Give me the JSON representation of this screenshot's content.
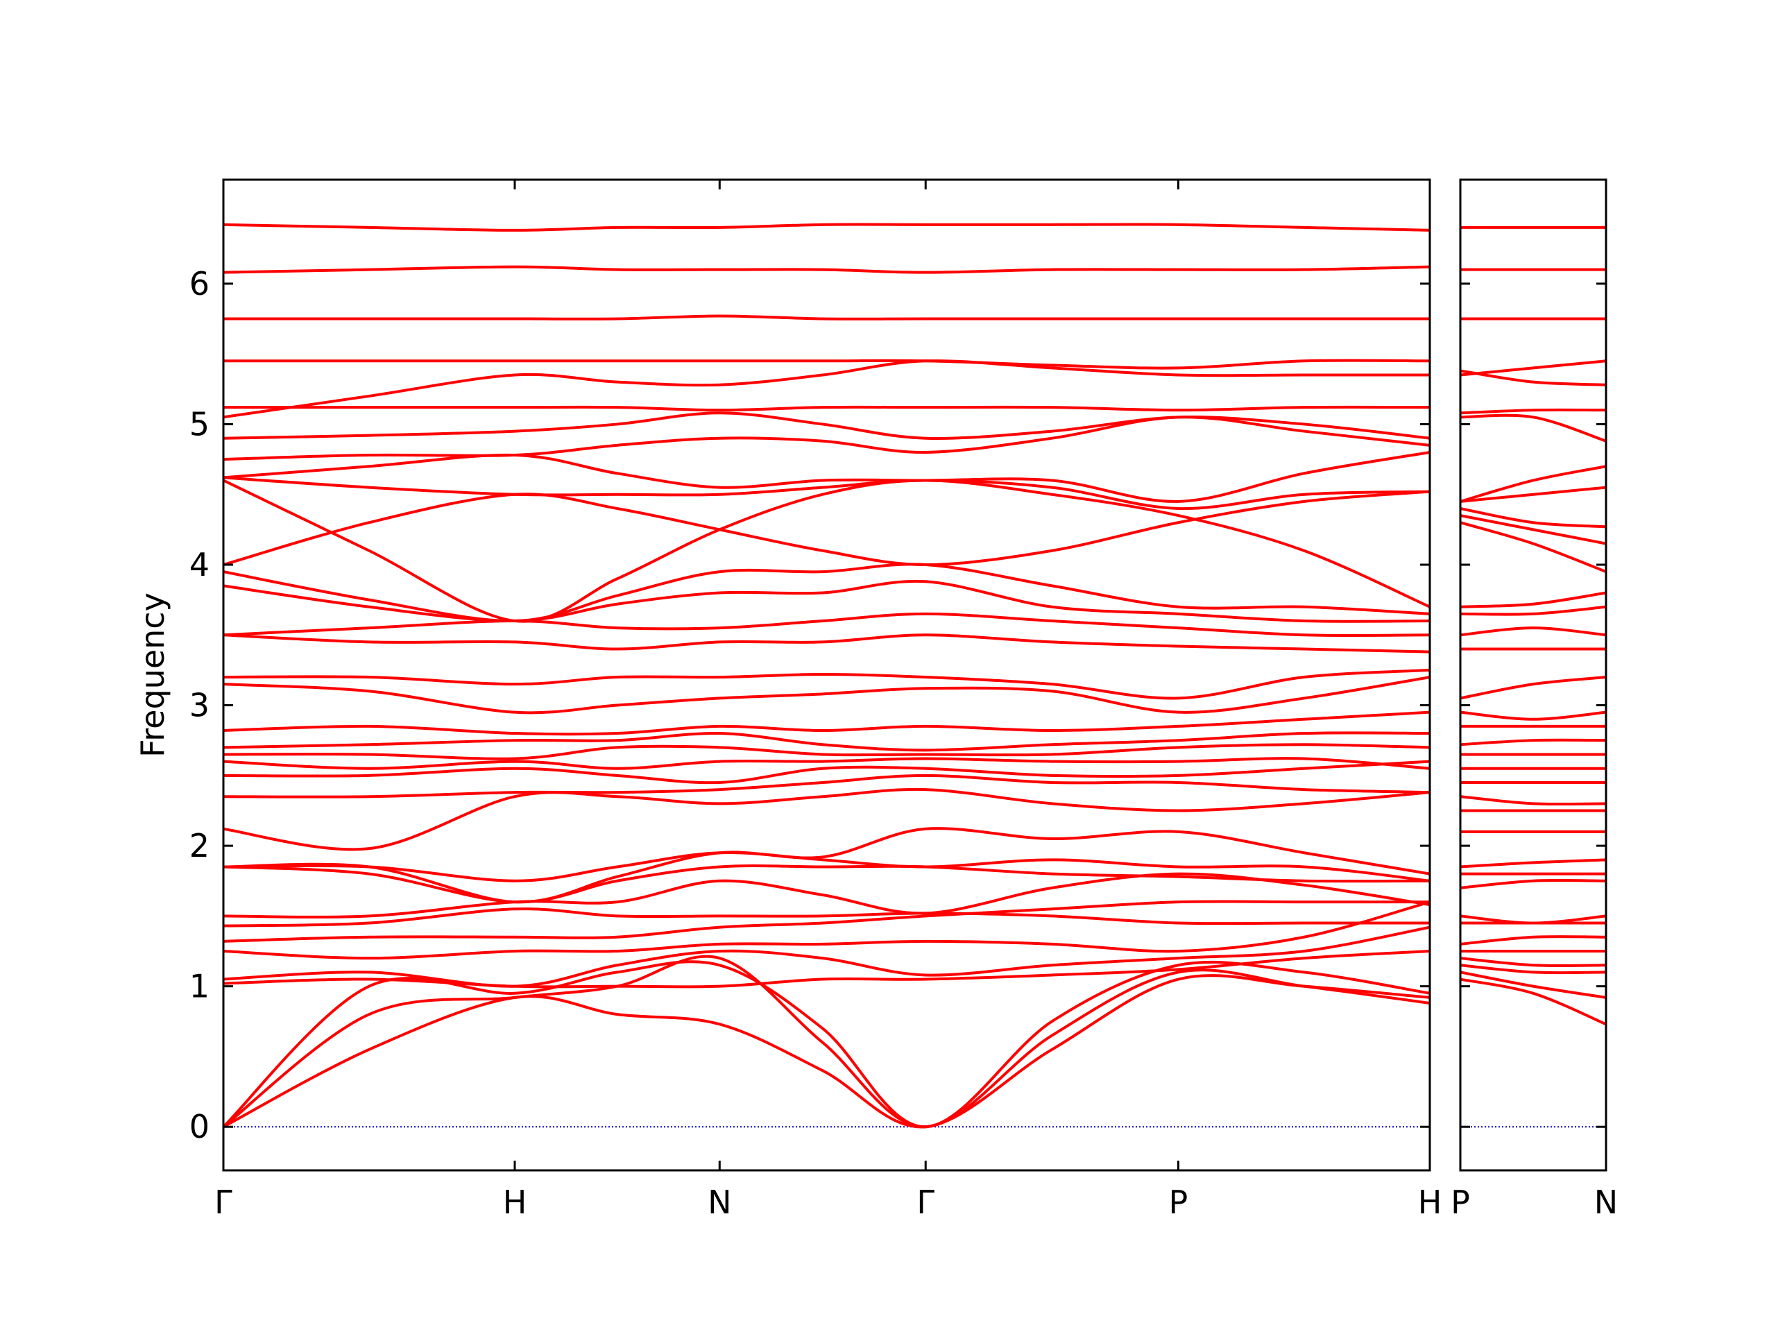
{
  "chart_data": [
    {
      "type": "line",
      "ylabel": "Frequency",
      "color": "#ff0000",
      "grid": false,
      "hline": 0,
      "hline_color": "#0000cc",
      "x": [
        0,
        1.28,
        2.56,
        3.46,
        4.36,
        5.265,
        6.17,
        7.28,
        8.39,
        9.495,
        10.6
      ],
      "xlim": [
        0,
        10.6
      ],
      "xticks": [
        {
          "value": 0,
          "label": "Γ"
        },
        {
          "value": 2.56,
          "label": "H"
        },
        {
          "value": 4.36,
          "label": "N"
        },
        {
          "value": 6.17,
          "label": "Γ"
        },
        {
          "value": 8.39,
          "label": "P"
        },
        {
          "value": 10.6,
          "label": "H"
        }
      ],
      "ylim": [
        -0.31,
        6.74
      ],
      "yticks": [
        0,
        1,
        2,
        3,
        4,
        5,
        6
      ],
      "series": [
        {
          "values": [
            0,
            0.55,
            0.92,
            0.8,
            0.73,
            0.4,
            0,
            0.55,
            1.05,
            1.0,
            0.92
          ]
        },
        {
          "values": [
            0,
            0.8,
            0.92,
            1.0,
            1.2,
            0.6,
            0,
            0.65,
            1.1,
            1.0,
            0.88
          ]
        },
        {
          "values": [
            0,
            1.0,
            0.95,
            1.1,
            1.15,
            0.7,
            0,
            0.75,
            1.15,
            1.1,
            0.95
          ]
        },
        {
          "values": [
            1.02,
            1.05,
            1.0,
            1.0,
            1.0,
            1.05,
            1.05,
            1.08,
            1.12,
            1.2,
            1.25
          ]
        },
        {
          "values": [
            1.05,
            1.1,
            1.0,
            1.15,
            1.25,
            1.2,
            1.08,
            1.15,
            1.2,
            1.25,
            1.42
          ]
        },
        {
          "values": [
            1.25,
            1.2,
            1.25,
            1.25,
            1.3,
            1.3,
            1.32,
            1.3,
            1.25,
            1.35,
            1.6
          ]
        },
        {
          "values": [
            1.32,
            1.35,
            1.35,
            1.35,
            1.42,
            1.45,
            1.5,
            1.55,
            1.6,
            1.6,
            1.6
          ]
        },
        {
          "values": [
            1.43,
            1.45,
            1.55,
            1.5,
            1.5,
            1.5,
            1.52,
            1.5,
            1.45,
            1.45,
            1.45
          ]
        },
        {
          "values": [
            1.5,
            1.5,
            1.6,
            1.6,
            1.75,
            1.65,
            1.52,
            1.7,
            1.8,
            1.72,
            1.58
          ]
        },
        {
          "values": [
            1.85,
            1.8,
            1.6,
            1.75,
            1.85,
            1.85,
            1.85,
            1.8,
            1.78,
            1.75,
            1.75
          ]
        },
        {
          "values": [
            1.85,
            1.85,
            1.75,
            1.85,
            1.95,
            1.9,
            1.85,
            1.9,
            1.85,
            1.85,
            1.75
          ]
        },
        {
          "values": [
            1.85,
            1.85,
            1.6,
            1.78,
            1.95,
            1.92,
            2.12,
            2.05,
            2.1,
            1.95,
            1.8
          ]
        },
        {
          "values": [
            2.12,
            1.98,
            2.35,
            2.35,
            2.3,
            2.35,
            2.4,
            2.3,
            2.25,
            2.3,
            2.38
          ]
        },
        {
          "values": [
            2.35,
            2.35,
            2.38,
            2.38,
            2.4,
            2.45,
            2.5,
            2.45,
            2.45,
            2.4,
            2.38
          ]
        },
        {
          "values": [
            2.5,
            2.5,
            2.55,
            2.5,
            2.45,
            2.55,
            2.55,
            2.5,
            2.5,
            2.55,
            2.6
          ]
        },
        {
          "values": [
            2.6,
            2.55,
            2.6,
            2.55,
            2.6,
            2.6,
            2.62,
            2.6,
            2.6,
            2.62,
            2.55
          ]
        },
        {
          "values": [
            2.65,
            2.65,
            2.62,
            2.7,
            2.7,
            2.65,
            2.65,
            2.65,
            2.7,
            2.72,
            2.7
          ]
        },
        {
          "values": [
            2.7,
            2.72,
            2.75,
            2.75,
            2.8,
            2.72,
            2.68,
            2.72,
            2.75,
            2.8,
            2.8
          ]
        },
        {
          "values": [
            2.82,
            2.85,
            2.8,
            2.8,
            2.85,
            2.82,
            2.85,
            2.82,
            2.85,
            2.9,
            2.95
          ]
        },
        {
          "values": [
            3.15,
            3.1,
            2.95,
            3.0,
            3.05,
            3.08,
            3.12,
            3.1,
            2.95,
            3.05,
            3.2
          ]
        },
        {
          "values": [
            3.2,
            3.2,
            3.15,
            3.2,
            3.2,
            3.22,
            3.2,
            3.15,
            3.05,
            3.2,
            3.25
          ]
        },
        {
          "values": [
            3.5,
            3.45,
            3.45,
            3.4,
            3.45,
            3.45,
            3.5,
            3.45,
            3.42,
            3.4,
            3.38
          ]
        },
        {
          "values": [
            3.5,
            3.55,
            3.6,
            3.55,
            3.55,
            3.6,
            3.65,
            3.6,
            3.55,
            3.5,
            3.5
          ]
        },
        {
          "values": [
            3.85,
            3.7,
            3.6,
            3.72,
            3.8,
            3.8,
            3.88,
            3.7,
            3.65,
            3.6,
            3.6
          ]
        },
        {
          "values": [
            3.95,
            3.75,
            3.6,
            3.78,
            3.95,
            3.95,
            4.0,
            3.85,
            3.7,
            3.7,
            3.65
          ]
        },
        {
          "values": [
            4.0,
            4.3,
            4.5,
            4.4,
            4.25,
            4.1,
            4.0,
            4.1,
            4.3,
            4.45,
            4.52
          ]
        },
        {
          "values": [
            4.6,
            4.1,
            3.6,
            3.9,
            4.25,
            4.5,
            4.6,
            4.5,
            4.35,
            4.1,
            3.7
          ]
        },
        {
          "values": [
            4.62,
            4.55,
            4.5,
            4.5,
            4.5,
            4.55,
            4.6,
            4.55,
            4.4,
            4.5,
            4.52
          ]
        },
        {
          "values": [
            4.62,
            4.7,
            4.78,
            4.65,
            4.55,
            4.6,
            4.6,
            4.6,
            4.45,
            4.65,
            4.8
          ]
        },
        {
          "values": [
            4.75,
            4.78,
            4.78,
            4.85,
            4.9,
            4.88,
            4.8,
            4.9,
            5.05,
            4.95,
            4.85
          ]
        },
        {
          "values": [
            4.9,
            4.92,
            4.95,
            5.0,
            5.08,
            5.0,
            4.9,
            4.95,
            5.05,
            5.0,
            4.9
          ]
        },
        {
          "values": [
            5.05,
            5.2,
            5.35,
            5.3,
            5.28,
            5.35,
            5.45,
            5.4,
            5.35,
            5.35,
            5.35
          ]
        },
        {
          "values": [
            5.12,
            5.12,
            5.12,
            5.12,
            5.1,
            5.12,
            5.12,
            5.12,
            5.1,
            5.12,
            5.12
          ]
        },
        {
          "values": [
            5.45,
            5.45,
            5.45,
            5.45,
            5.45,
            5.45,
            5.45,
            5.42,
            5.4,
            5.45,
            5.45
          ]
        },
        {
          "values": [
            5.75,
            5.75,
            5.75,
            5.75,
            5.77,
            5.75,
            5.75,
            5.75,
            5.75,
            5.75,
            5.75
          ]
        },
        {
          "values": [
            6.08,
            6.1,
            6.12,
            6.1,
            6.1,
            6.1,
            6.08,
            6.1,
            6.1,
            6.1,
            6.12
          ]
        },
        {
          "values": [
            6.42,
            6.4,
            6.38,
            6.4,
            6.4,
            6.42,
            6.42,
            6.42,
            6.42,
            6.4,
            6.38
          ]
        }
      ]
    },
    {
      "type": "line",
      "color": "#ff0000",
      "grid": false,
      "hline": 0,
      "hline_color": "#0000cc",
      "x": [
        0,
        0.64,
        1.28
      ],
      "xlim": [
        0,
        1.28
      ],
      "xticks": [
        {
          "value": 0,
          "label": "P"
        },
        {
          "value": 1.28,
          "label": "N"
        }
      ],
      "ylim": [
        -0.31,
        6.74
      ],
      "yticks": [
        0,
        1,
        2,
        3,
        4,
        5,
        6
      ],
      "series": [
        {
          "values": [
            1.05,
            0.95,
            0.73
          ]
        },
        {
          "values": [
            1.1,
            1.0,
            0.92
          ]
        },
        {
          "values": [
            1.15,
            1.1,
            1.1
          ]
        },
        {
          "values": [
            1.2,
            1.15,
            1.15
          ]
        },
        {
          "values": [
            1.25,
            1.25,
            1.25
          ]
        },
        {
          "values": [
            1.3,
            1.35,
            1.35
          ]
        },
        {
          "values": [
            1.45,
            1.45,
            1.45
          ]
        },
        {
          "values": [
            1.5,
            1.45,
            1.5
          ]
        },
        {
          "values": [
            1.7,
            1.75,
            1.75
          ]
        },
        {
          "values": [
            1.8,
            1.8,
            1.8
          ]
        },
        {
          "values": [
            1.85,
            1.88,
            1.9
          ]
        },
        {
          "values": [
            2.1,
            2.1,
            2.1
          ]
        },
        {
          "values": [
            2.25,
            2.25,
            2.25
          ]
        },
        {
          "values": [
            2.35,
            2.3,
            2.3
          ]
        },
        {
          "values": [
            2.45,
            2.45,
            2.45
          ]
        },
        {
          "values": [
            2.55,
            2.55,
            2.55
          ]
        },
        {
          "values": [
            2.65,
            2.65,
            2.65
          ]
        },
        {
          "values": [
            2.72,
            2.75,
            2.75
          ]
        },
        {
          "values": [
            2.85,
            2.85,
            2.85
          ]
        },
        {
          "values": [
            2.95,
            2.9,
            2.95
          ]
        },
        {
          "values": [
            3.05,
            3.15,
            3.2
          ]
        },
        {
          "values": [
            3.4,
            3.4,
            3.4
          ]
        },
        {
          "values": [
            3.5,
            3.55,
            3.5
          ]
        },
        {
          "values": [
            3.65,
            3.65,
            3.7
          ]
        },
        {
          "values": [
            3.7,
            3.72,
            3.8
          ]
        },
        {
          "values": [
            4.3,
            4.15,
            3.95
          ]
        },
        {
          "values": [
            4.35,
            4.25,
            4.15
          ]
        },
        {
          "values": [
            4.4,
            4.3,
            4.27
          ]
        },
        {
          "values": [
            4.45,
            4.5,
            4.55
          ]
        },
        {
          "values": [
            4.45,
            4.6,
            4.7
          ]
        },
        {
          "values": [
            5.05,
            5.05,
            4.88
          ]
        },
        {
          "values": [
            5.08,
            5.1,
            5.1
          ]
        },
        {
          "values": [
            5.38,
            5.3,
            5.28
          ]
        },
        {
          "values": [
            5.35,
            5.4,
            5.45
          ]
        },
        {
          "values": [
            5.75,
            5.75,
            5.75
          ]
        },
        {
          "values": [
            6.1,
            6.1,
            6.1
          ]
        },
        {
          "values": [
            6.4,
            6.4,
            6.4
          ]
        }
      ]
    }
  ]
}
